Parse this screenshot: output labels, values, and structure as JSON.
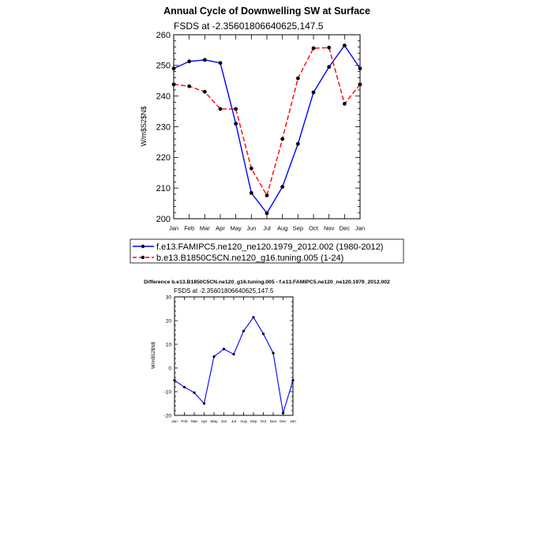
{
  "chart_data": [
    {
      "type": "line",
      "title": "Annual Cycle of Downwelling SW at Surface",
      "subtitle": "FSDS at -2.35601806640625,147.5",
      "ylabel": "W/m$S2$N$",
      "xlabel": "",
      "categories": [
        "Jan",
        "Feb",
        "Mar",
        "Apr",
        "May",
        "Jun",
        "Jul",
        "Aug",
        "Sep",
        "Oct",
        "Nov",
        "Dec",
        "Jan"
      ],
      "ylim": [
        200,
        260
      ],
      "yticks": [
        200,
        210,
        220,
        230,
        240,
        250,
        260
      ],
      "grid": false,
      "legend": "below",
      "series": [
        {
          "name": "f.e13.FAMIPC5.ne120_ne120.1979_2012.002 (1980-2012)",
          "color": "#0000ff",
          "dash": "solid",
          "values": [
            249.0,
            251.3,
            251.8,
            250.8,
            231.0,
            208.4,
            201.8,
            210.4,
            224.4,
            241.2,
            249.5,
            256.5,
            249.0
          ]
        },
        {
          "name": "b.e13.B1850C5CN.ne120_g16.tuning.005 (1-24)",
          "color": "#ff0000",
          "dash": "dashed",
          "values": [
            243.8,
            243.2,
            241.4,
            235.8,
            235.8,
            216.4,
            207.6,
            226.0,
            245.8,
            255.6,
            255.8,
            237.5,
            243.8
          ]
        }
      ]
    },
    {
      "type": "line",
      "title": "Difference b.e13.B1850C5CN.ne120_g16.tuning.005 - f.e13.FAMIPC5.ne120_ne120.1979_2012.002",
      "subtitle": "FSDS at -2.35601806640625,147.5",
      "ylabel": "W/m$S2$N$",
      "xlabel": "",
      "categories": [
        "Jan",
        "Feb",
        "Mar",
        "Apr",
        "May",
        "Jun",
        "Jul",
        "Aug",
        "Sep",
        "Oct",
        "Nov",
        "Dec",
        "Jan"
      ],
      "ylim": [
        -20,
        30
      ],
      "yticks": [
        -20,
        -10,
        0,
        10,
        20,
        30
      ],
      "grid": false,
      "series": [
        {
          "color": "#0000ff",
          "values": [
            -5.2,
            -8.1,
            -10.4,
            -15.0,
            4.8,
            8.0,
            5.8,
            15.6,
            21.4,
            14.4,
            6.3,
            -19.0,
            -5.2
          ]
        }
      ]
    }
  ]
}
